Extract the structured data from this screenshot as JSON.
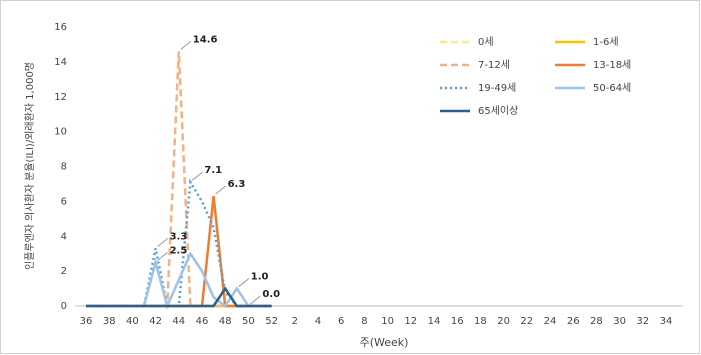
{
  "chart_data": {
    "type": "line",
    "y_label": "인플루엔자 의사환자 분율(ILI)/외래환자 1,000명",
    "x_label": "주(Week)",
    "categories": [
      "36",
      null,
      "38",
      null,
      "40",
      null,
      "42",
      null,
      "44",
      null,
      "46",
      null,
      "48",
      null,
      "50",
      null,
      "52",
      null,
      "2",
      null,
      "4",
      null,
      "6",
      null,
      "8",
      null,
      "10",
      null,
      "12",
      null,
      "14",
      null,
      "16",
      null,
      "18",
      null,
      "20",
      null,
      "22",
      null,
      "24",
      null,
      "26",
      null,
      "28",
      null,
      "30",
      null,
      "32",
      null,
      "34",
      null
    ],
    "ylim": [
      0,
      16
    ],
    "yticks": [
      0,
      2,
      4,
      6,
      8,
      10,
      12,
      14,
      16
    ],
    "series": [
      {
        "name": "0세",
        "color": "#ffe699",
        "dash": "dashed",
        "values": [
          0,
          0,
          0,
          0,
          0,
          0,
          0,
          0,
          0,
          0,
          0,
          0,
          0,
          0,
          0,
          0,
          0,
          null,
          null,
          null,
          null,
          null,
          null,
          null,
          null,
          null,
          null,
          null,
          null,
          null,
          null,
          null,
          null,
          null,
          null,
          null,
          null,
          null,
          null,
          null,
          null,
          null,
          null,
          null,
          null,
          null,
          null,
          null,
          null,
          null,
          null,
          null
        ]
      },
      {
        "name": "1-6세",
        "color": "#ffc000",
        "dash": "solid",
        "values": [
          0,
          0,
          0,
          0,
          0,
          0,
          0,
          0,
          0,
          0,
          0,
          0,
          0,
          0,
          0,
          0,
          0,
          null,
          null,
          null,
          null,
          null,
          null,
          null,
          null,
          null,
          null,
          null,
          null,
          null,
          null,
          null,
          null,
          null,
          null,
          null,
          null,
          null,
          null,
          null,
          null,
          null,
          null,
          null,
          null,
          null,
          null,
          null,
          null,
          null,
          null,
          null
        ]
      },
      {
        "name": "7-12세",
        "color": "#f4b183",
        "dash": "dashed",
        "values": [
          0,
          0,
          0,
          0,
          0,
          0,
          0,
          0,
          14.6,
          0,
          0,
          0,
          0,
          0,
          0,
          0,
          0,
          null,
          null,
          null,
          null,
          null,
          null,
          null,
          null,
          null,
          null,
          null,
          null,
          null,
          null,
          null,
          null,
          null,
          null,
          null,
          null,
          null,
          null,
          null,
          null,
          null,
          null,
          null,
          null,
          null,
          null,
          null,
          null,
          null,
          null,
          null
        ],
        "value_labels": [
          null,
          null,
          null,
          null,
          null,
          null,
          null,
          null,
          "14.6",
          null,
          null,
          null,
          null,
          null,
          null,
          null,
          null,
          null,
          null,
          null,
          null,
          null,
          null,
          null,
          null,
          null,
          null,
          null,
          null,
          null,
          null,
          null,
          null,
          null,
          null,
          null,
          null,
          null,
          null,
          null,
          null,
          null,
          null,
          null,
          null,
          null,
          null,
          null,
          null,
          null,
          null,
          null
        ]
      },
      {
        "name": "13-18세",
        "color": "#ed7d31",
        "dash": "solid",
        "values": [
          0,
          0,
          0,
          0,
          0,
          0,
          0,
          0,
          0,
          0,
          0,
          6.3,
          0,
          0,
          0,
          0,
          0,
          null,
          null,
          null,
          null,
          null,
          null,
          null,
          null,
          null,
          null,
          null,
          null,
          null,
          null,
          null,
          null,
          null,
          null,
          null,
          null,
          null,
          null,
          null,
          null,
          null,
          null,
          null,
          null,
          null,
          null,
          null,
          null,
          null,
          null,
          null
        ],
        "value_labels": [
          null,
          null,
          null,
          null,
          null,
          null,
          null,
          null,
          null,
          null,
          null,
          "6.3",
          null,
          null,
          null,
          null,
          null,
          null,
          null,
          null,
          null,
          null,
          null,
          null,
          null,
          null,
          null,
          null,
          null,
          null,
          null,
          null,
          null,
          null,
          null,
          null,
          null,
          null,
          null,
          null,
          null,
          null,
          null,
          null,
          null,
          null,
          null,
          null,
          null,
          null,
          null,
          null
        ]
      },
      {
        "name": "19-49세",
        "color": "#5b9bd5",
        "dash": "dotted",
        "values": [
          0,
          0,
          0,
          0,
          0,
          0,
          3.3,
          0,
          0,
          7.1,
          6,
          4.5,
          0.8,
          0,
          0,
          0,
          0,
          null,
          null,
          null,
          null,
          null,
          null,
          null,
          null,
          null,
          null,
          null,
          null,
          null,
          null,
          null,
          null,
          null,
          null,
          null,
          null,
          null,
          null,
          null,
          null,
          null,
          null,
          null,
          null,
          null,
          null,
          null,
          null,
          null,
          null,
          null
        ],
        "value_labels": [
          null,
          null,
          null,
          null,
          null,
          null,
          "3.3",
          null,
          null,
          "7.1",
          null,
          null,
          null,
          null,
          null,
          null,
          null,
          null,
          null,
          null,
          null,
          null,
          null,
          null,
          null,
          null,
          null,
          null,
          null,
          null,
          null,
          null,
          null,
          null,
          null,
          null,
          null,
          null,
          null,
          null,
          null,
          null,
          null,
          null,
          null,
          null,
          null,
          null,
          null,
          null,
          null,
          null
        ]
      },
      {
        "name": "50-64세",
        "color": "#9dc3e6",
        "dash": "solid",
        "values": [
          0,
          0,
          0,
          0,
          0,
          0,
          2.5,
          0,
          1.5,
          3,
          2,
          0.5,
          0,
          1,
          0,
          0,
          0,
          null,
          null,
          null,
          null,
          null,
          null,
          null,
          null,
          null,
          null,
          null,
          null,
          null,
          null,
          null,
          null,
          null,
          null,
          null,
          null,
          null,
          null,
          null,
          null,
          null,
          null,
          null,
          null,
          null,
          null,
          null,
          null,
          null,
          null,
          null
        ],
        "value_labels": [
          null,
          null,
          null,
          null,
          null,
          null,
          "2.5",
          null,
          null,
          null,
          null,
          null,
          null,
          "1.0",
          null,
          null,
          null,
          null,
          null,
          null,
          null,
          null,
          null,
          null,
          null,
          null,
          null,
          null,
          null,
          null,
          null,
          null,
          null,
          null,
          null,
          null,
          null,
          null,
          null,
          null,
          null,
          null,
          null,
          null,
          null,
          null,
          null,
          null,
          null,
          null,
          null,
          null
        ]
      },
      {
        "name": "65세이상",
        "color": "#2e5f8a",
        "dash": "solid",
        "values": [
          0,
          0,
          0,
          0,
          0,
          0,
          0,
          0,
          0,
          0,
          0,
          0,
          1,
          0,
          0,
          0,
          0,
          null,
          null,
          null,
          null,
          null,
          null,
          null,
          null,
          null,
          null,
          null,
          null,
          null,
          null,
          null,
          null,
          null,
          null,
          null,
          null,
          null,
          null,
          null,
          null,
          null,
          null,
          null,
          null,
          null,
          null,
          null,
          null,
          null,
          null,
          null
        ],
        "value_labels": [
          null,
          null,
          null,
          null,
          null,
          null,
          null,
          null,
          null,
          null,
          null,
          null,
          null,
          null,
          "0.0",
          null,
          null,
          null,
          null,
          null,
          null,
          null,
          null,
          null,
          null,
          null,
          null,
          null,
          null,
          null,
          null,
          null,
          null,
          null,
          null,
          null,
          null,
          null,
          null,
          null,
          null,
          null,
          null,
          null,
          null,
          null,
          null,
          null,
          null,
          null,
          null,
          null
        ]
      }
    ]
  }
}
